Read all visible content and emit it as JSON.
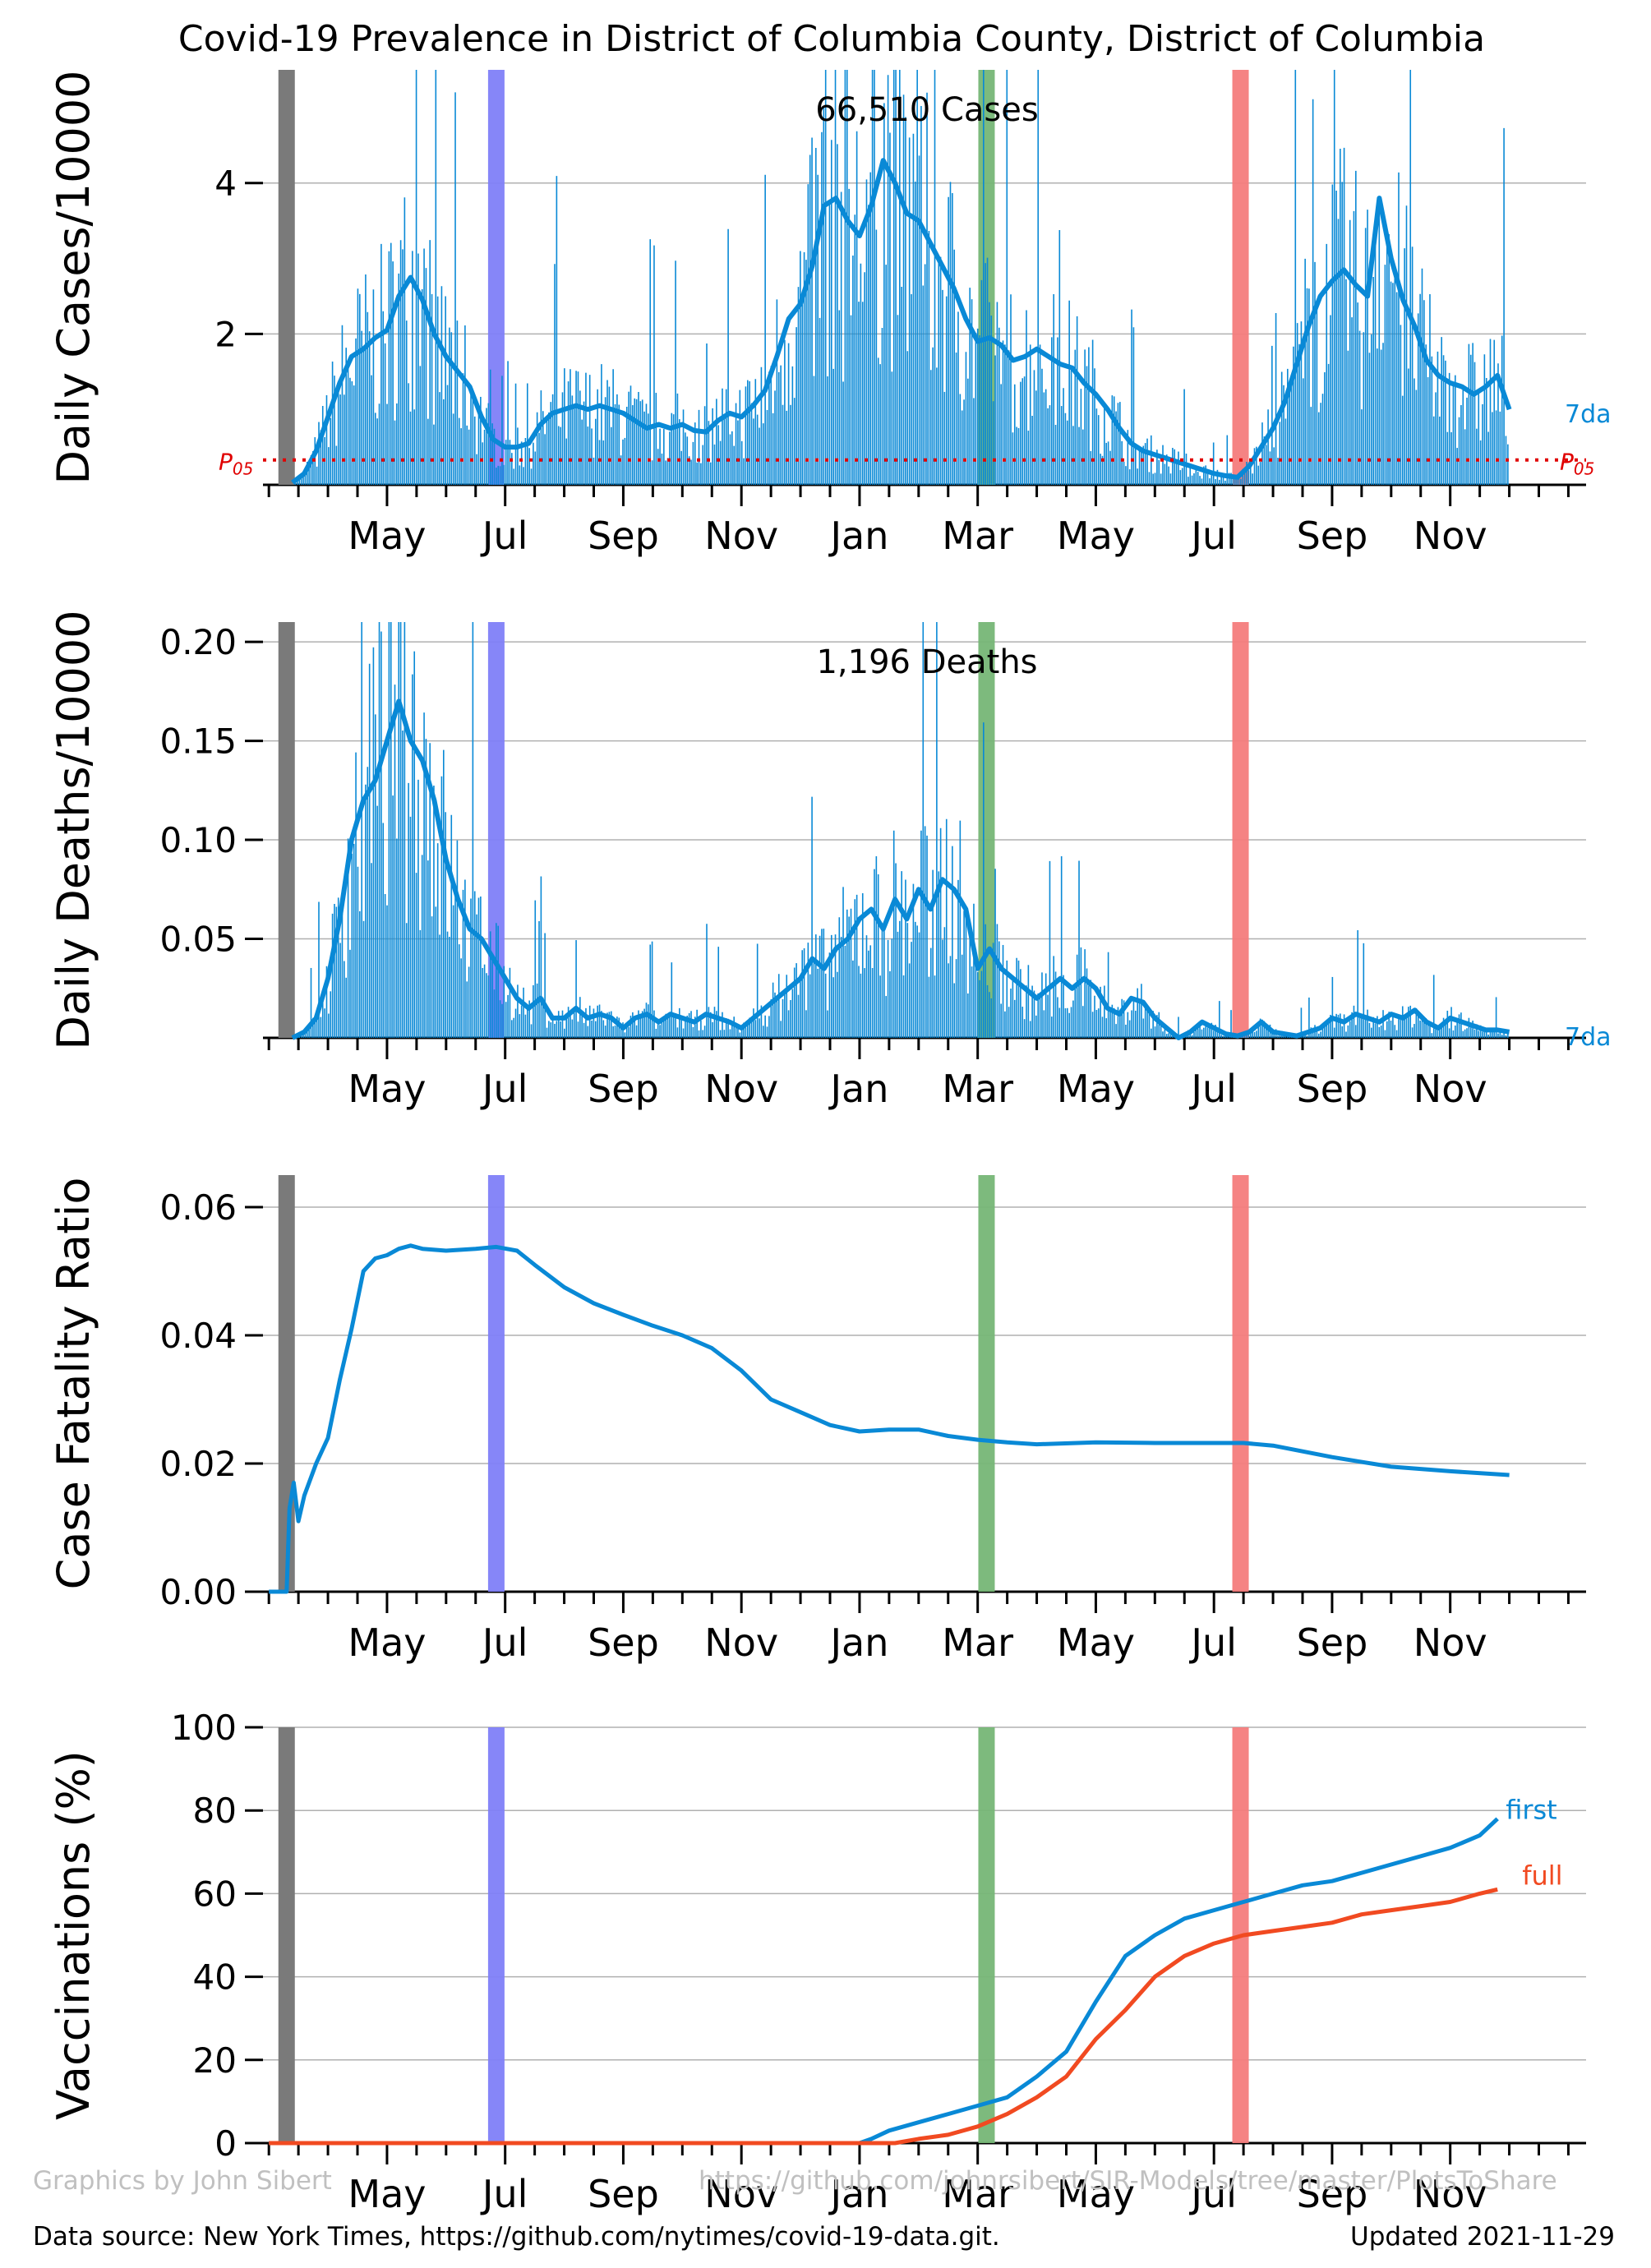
{
  "title": "Covid-19 Prevalence in District of Columbia County, District of Columbia",
  "footer": {
    "credit": "Graphics by John Sibert",
    "repo": "https://github.com/johnrsibert/SIR-Models/tree/master/PlotsToShare",
    "source": "Data source: New York Times, https://github.com/nytimes/covid-19-data.git.",
    "updated": "Updated 2021-11-29"
  },
  "colors": {
    "series": "#0989d6",
    "full": "#f14a21",
    "p05": "#e00000",
    "markers": [
      "#7a7a7a",
      "#8080f8",
      "#76b676",
      "#f47c7c"
    ]
  },
  "chart_data": [
    {
      "type": "bar",
      "panel": "cases",
      "ylabel": "Daily Cases/10000",
      "annotation": "66,510 Cases",
      "ylim": [
        0,
        5.5
      ],
      "yticks": [
        "2",
        "4"
      ],
      "ytick_values": [
        2,
        4
      ],
      "xtick_labels": [
        "May",
        "Jul",
        "Sep",
        "Nov",
        "Jan",
        "Mar",
        "May",
        "Jul",
        "Sep",
        "Nov"
      ],
      "xtick_months": [
        2,
        4,
        6,
        8,
        10,
        12,
        14,
        16,
        18,
        20
      ],
      "xlim_months": [
        -0.1,
        22.3
      ],
      "marker_months": [
        0.3,
        3.85,
        12.15,
        16.45
      ],
      "smooth_label": "7da",
      "p05_label": "P05",
      "p05_value": 0.33,
      "series_7da": [
        [
          0.4,
          0.03
        ],
        [
          0.6,
          0.15
        ],
        [
          0.8,
          0.45
        ],
        [
          1.0,
          0.9
        ],
        [
          1.2,
          1.35
        ],
        [
          1.4,
          1.7
        ],
        [
          1.6,
          1.8
        ],
        [
          1.8,
          1.95
        ],
        [
          2.0,
          2.05
        ],
        [
          2.2,
          2.5
        ],
        [
          2.4,
          2.75
        ],
        [
          2.6,
          2.45
        ],
        [
          2.8,
          2.0
        ],
        [
          3.0,
          1.7
        ],
        [
          3.2,
          1.5
        ],
        [
          3.4,
          1.3
        ],
        [
          3.6,
          0.9
        ],
        [
          3.8,
          0.6
        ],
        [
          4.0,
          0.5
        ],
        [
          4.2,
          0.5
        ],
        [
          4.4,
          0.55
        ],
        [
          4.6,
          0.8
        ],
        [
          4.8,
          0.95
        ],
        [
          5.0,
          1.0
        ],
        [
          5.2,
          1.05
        ],
        [
          5.4,
          1.0
        ],
        [
          5.6,
          1.05
        ],
        [
          5.8,
          1.0
        ],
        [
          6.0,
          0.95
        ],
        [
          6.2,
          0.85
        ],
        [
          6.4,
          0.75
        ],
        [
          6.6,
          0.8
        ],
        [
          6.8,
          0.75
        ],
        [
          7.0,
          0.8
        ],
        [
          7.2,
          0.72
        ],
        [
          7.4,
          0.7
        ],
        [
          7.6,
          0.85
        ],
        [
          7.8,
          0.95
        ],
        [
          8.0,
          0.9
        ],
        [
          8.2,
          1.05
        ],
        [
          8.4,
          1.25
        ],
        [
          8.6,
          1.7
        ],
        [
          8.8,
          2.2
        ],
        [
          9.0,
          2.4
        ],
        [
          9.2,
          2.9
        ],
        [
          9.4,
          3.7
        ],
        [
          9.6,
          3.8
        ],
        [
          9.8,
          3.5
        ],
        [
          10.0,
          3.3
        ],
        [
          10.2,
          3.7
        ],
        [
          10.4,
          4.3
        ],
        [
          10.6,
          4.0
        ],
        [
          10.8,
          3.6
        ],
        [
          11.0,
          3.5
        ],
        [
          11.2,
          3.2
        ],
        [
          11.4,
          2.9
        ],
        [
          11.6,
          2.6
        ],
        [
          11.8,
          2.2
        ],
        [
          12.0,
          1.9
        ],
        [
          12.2,
          1.95
        ],
        [
          12.4,
          1.85
        ],
        [
          12.6,
          1.65
        ],
        [
          12.8,
          1.7
        ],
        [
          13.0,
          1.8
        ],
        [
          13.2,
          1.7
        ],
        [
          13.4,
          1.6
        ],
        [
          13.6,
          1.55
        ],
        [
          13.8,
          1.35
        ],
        [
          14.0,
          1.2
        ],
        [
          14.2,
          1.0
        ],
        [
          14.4,
          0.75
        ],
        [
          14.6,
          0.55
        ],
        [
          14.8,
          0.45
        ],
        [
          15.0,
          0.4
        ],
        [
          15.2,
          0.35
        ],
        [
          15.4,
          0.3
        ],
        [
          15.6,
          0.25
        ],
        [
          15.8,
          0.2
        ],
        [
          16.0,
          0.15
        ],
        [
          16.2,
          0.12
        ],
        [
          16.4,
          0.1
        ],
        [
          16.6,
          0.25
        ],
        [
          16.8,
          0.5
        ],
        [
          17.0,
          0.75
        ],
        [
          17.2,
          1.1
        ],
        [
          17.4,
          1.6
        ],
        [
          17.6,
          2.1
        ],
        [
          17.8,
          2.5
        ],
        [
          18.0,
          2.7
        ],
        [
          18.2,
          2.85
        ],
        [
          18.4,
          2.65
        ],
        [
          18.6,
          2.5
        ],
        [
          18.8,
          3.8
        ],
        [
          19.0,
          3.0
        ],
        [
          19.2,
          2.45
        ],
        [
          19.4,
          2.1
        ],
        [
          19.6,
          1.65
        ],
        [
          19.8,
          1.45
        ],
        [
          20.0,
          1.35
        ],
        [
          20.2,
          1.3
        ],
        [
          20.4,
          1.2
        ],
        [
          20.6,
          1.3
        ],
        [
          20.8,
          1.45
        ],
        [
          21.0,
          1.0
        ]
      ]
    },
    {
      "type": "bar",
      "panel": "deaths",
      "ylabel": "Daily Deaths/10000",
      "annotation": "1,196 Deaths",
      "ylim": [
        0,
        0.21
      ],
      "yticks": [
        "0.05",
        "0.10",
        "0.15",
        "0.20"
      ],
      "ytick_values": [
        0.05,
        0.1,
        0.15,
        0.2
      ],
      "xtick_labels": [
        "May",
        "Jul",
        "Sep",
        "Nov",
        "Jan",
        "Mar",
        "May",
        "Jul",
        "Sep",
        "Nov"
      ],
      "smooth_label": "7da",
      "series_7da": [
        [
          0.4,
          0.0
        ],
        [
          0.6,
          0.003
        ],
        [
          0.8,
          0.01
        ],
        [
          1.0,
          0.03
        ],
        [
          1.2,
          0.06
        ],
        [
          1.4,
          0.1
        ],
        [
          1.6,
          0.12
        ],
        [
          1.8,
          0.13
        ],
        [
          2.0,
          0.15
        ],
        [
          2.2,
          0.17
        ],
        [
          2.4,
          0.15
        ],
        [
          2.6,
          0.14
        ],
        [
          2.8,
          0.12
        ],
        [
          3.0,
          0.09
        ],
        [
          3.2,
          0.07
        ],
        [
          3.4,
          0.055
        ],
        [
          3.6,
          0.05
        ],
        [
          3.8,
          0.04
        ],
        [
          4.0,
          0.03
        ],
        [
          4.2,
          0.02
        ],
        [
          4.4,
          0.015
        ],
        [
          4.6,
          0.02
        ],
        [
          4.8,
          0.01
        ],
        [
          5.0,
          0.01
        ],
        [
          5.2,
          0.015
        ],
        [
          5.4,
          0.01
        ],
        [
          5.6,
          0.012
        ],
        [
          5.8,
          0.01
        ],
        [
          6.0,
          0.005
        ],
        [
          6.2,
          0.01
        ],
        [
          6.4,
          0.012
        ],
        [
          6.6,
          0.008
        ],
        [
          6.8,
          0.012
        ],
        [
          7.0,
          0.01
        ],
        [
          7.2,
          0.008
        ],
        [
          7.4,
          0.012
        ],
        [
          7.6,
          0.01
        ],
        [
          7.8,
          0.008
        ],
        [
          8.0,
          0.005
        ],
        [
          8.2,
          0.01
        ],
        [
          8.4,
          0.015
        ],
        [
          8.6,
          0.02
        ],
        [
          8.8,
          0.025
        ],
        [
          9.0,
          0.03
        ],
        [
          9.2,
          0.04
        ],
        [
          9.4,
          0.035
        ],
        [
          9.6,
          0.045
        ],
        [
          9.8,
          0.05
        ],
        [
          10.0,
          0.06
        ],
        [
          10.2,
          0.065
        ],
        [
          10.4,
          0.055
        ],
        [
          10.6,
          0.07
        ],
        [
          10.8,
          0.06
        ],
        [
          11.0,
          0.075
        ],
        [
          11.2,
          0.065
        ],
        [
          11.4,
          0.08
        ],
        [
          11.6,
          0.075
        ],
        [
          11.8,
          0.065
        ],
        [
          12.0,
          0.035
        ],
        [
          12.2,
          0.045
        ],
        [
          12.4,
          0.035
        ],
        [
          12.6,
          0.03
        ],
        [
          12.8,
          0.025
        ],
        [
          13.0,
          0.02
        ],
        [
          13.2,
          0.025
        ],
        [
          13.4,
          0.03
        ],
        [
          13.6,
          0.025
        ],
        [
          13.8,
          0.03
        ],
        [
          14.0,
          0.025
        ],
        [
          14.2,
          0.015
        ],
        [
          14.4,
          0.012
        ],
        [
          14.6,
          0.02
        ],
        [
          14.8,
          0.018
        ],
        [
          15.0,
          0.01
        ],
        [
          15.2,
          0.005
        ],
        [
          15.4,
          0.0
        ],
        [
          15.6,
          0.003
        ],
        [
          15.8,
          0.008
        ],
        [
          16.0,
          0.005
        ],
        [
          16.2,
          0.002
        ],
        [
          16.4,
          0.001
        ],
        [
          16.6,
          0.003
        ],
        [
          16.8,
          0.008
        ],
        [
          17.0,
          0.003
        ],
        [
          17.2,
          0.002
        ],
        [
          17.4,
          0.001
        ],
        [
          17.6,
          0.003
        ],
        [
          17.8,
          0.005
        ],
        [
          18.0,
          0.01
        ],
        [
          18.2,
          0.008
        ],
        [
          18.4,
          0.012
        ],
        [
          18.6,
          0.01
        ],
        [
          18.8,
          0.008
        ],
        [
          19.0,
          0.012
        ],
        [
          19.2,
          0.01
        ],
        [
          19.4,
          0.014
        ],
        [
          19.6,
          0.008
        ],
        [
          19.8,
          0.005
        ],
        [
          20.0,
          0.01
        ],
        [
          20.2,
          0.008
        ],
        [
          20.4,
          0.006
        ],
        [
          20.6,
          0.004
        ],
        [
          20.8,
          0.004
        ],
        [
          21.0,
          0.003
        ]
      ]
    },
    {
      "type": "line",
      "panel": "cfr",
      "ylabel": "Case Fatality Ratio",
      "ylim": [
        0,
        0.065
      ],
      "yticks": [
        "0.00",
        "0.02",
        "0.04",
        "0.06"
      ],
      "ytick_values": [
        0,
        0.02,
        0.04,
        0.06
      ],
      "xtick_labels": [
        "May",
        "Jul",
        "Sep",
        "Nov",
        "Jan",
        "Mar",
        "May",
        "Jul",
        "Sep",
        "Nov"
      ],
      "x": [
        0.0,
        0.3,
        0.35,
        0.42,
        0.5,
        0.6,
        0.8,
        1.0,
        1.2,
        1.4,
        1.6,
        1.8,
        2.0,
        2.2,
        2.4,
        2.6,
        3.0,
        3.5,
        3.85,
        4.2,
        4.5,
        5.0,
        5.5,
        6.0,
        6.5,
        7.0,
        7.5,
        8.0,
        8.5,
        9.0,
        9.5,
        10.0,
        10.5,
        11.0,
        11.5,
        12.0,
        12.5,
        13.0,
        14.0,
        15.0,
        16.0,
        16.5,
        17.0,
        18.0,
        19.0,
        20.0,
        21.0
      ],
      "y": [
        0.0,
        0.0,
        0.013,
        0.017,
        0.011,
        0.015,
        0.02,
        0.024,
        0.033,
        0.041,
        0.05,
        0.052,
        0.0525,
        0.0535,
        0.054,
        0.0535,
        0.0532,
        0.0535,
        0.0538,
        0.0532,
        0.051,
        0.0475,
        0.045,
        0.0432,
        0.0415,
        0.04,
        0.038,
        0.0345,
        0.03,
        0.028,
        0.026,
        0.025,
        0.0253,
        0.0253,
        0.0243,
        0.0237,
        0.0233,
        0.023,
        0.0233,
        0.0232,
        0.0232,
        0.0232,
        0.0228,
        0.021,
        0.0195,
        0.0188,
        0.0182
      ]
    },
    {
      "type": "line",
      "panel": "vaccinations",
      "ylabel": "Vaccinations (%)",
      "ylim": [
        0,
        100
      ],
      "yticks": [
        "0",
        "20",
        "40",
        "60",
        "80",
        "100"
      ],
      "ytick_values": [
        0,
        20,
        40,
        60,
        80,
        100
      ],
      "xtick_labels": [
        "May",
        "Jul",
        "Sep",
        "Nov",
        "Jan",
        "Mar",
        "May",
        "Jul",
        "Sep",
        "Nov"
      ],
      "series": [
        {
          "name": "first",
          "x": [
            0.0,
            10.0,
            10.2,
            10.5,
            11.0,
            11.5,
            12.0,
            12.5,
            13.0,
            13.5,
            14.0,
            14.5,
            15.0,
            15.5,
            16.0,
            16.5,
            17.0,
            17.5,
            18.0,
            18.5,
            19.0,
            19.5,
            20.0,
            20.5,
            20.8
          ],
          "y": [
            0,
            0,
            1,
            3,
            5,
            7,
            9,
            11,
            16,
            22,
            34,
            45,
            50,
            54,
            56,
            58,
            60,
            62,
            63,
            65,
            67,
            69,
            71,
            74,
            78
          ]
        },
        {
          "name": "full",
          "x": [
            0.0,
            10.6,
            11.0,
            11.5,
            12.0,
            12.5,
            13.0,
            13.5,
            14.0,
            14.5,
            15.0,
            15.5,
            16.0,
            16.5,
            17.0,
            17.5,
            18.0,
            18.5,
            19.0,
            19.5,
            20.0,
            20.5,
            20.8
          ],
          "y": [
            0,
            0,
            1,
            2,
            4,
            7,
            11,
            16,
            25,
            32,
            40,
            45,
            48,
            50,
            51,
            52,
            53,
            55,
            56,
            57,
            58,
            60,
            61
          ]
        }
      ]
    }
  ]
}
